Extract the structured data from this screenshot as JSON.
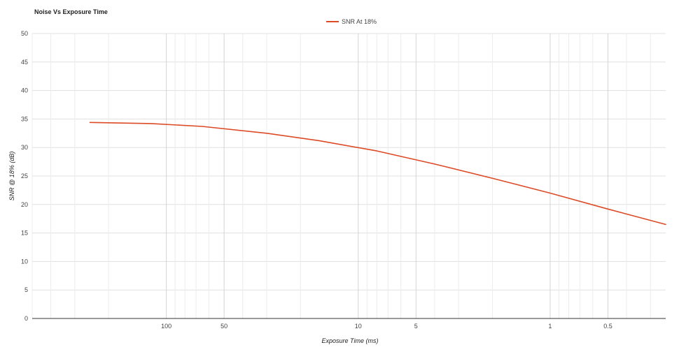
{
  "chart_data": {
    "type": "line",
    "title": "Noise Vs Exposure Time",
    "xlabel": "Exposure Time (ms)",
    "ylabel": "SNR @ 18% (dB)",
    "x_scale": "log",
    "x_reversed": true,
    "xlim": [
      500,
      0.25
    ],
    "ylim": [
      0,
      50
    ],
    "y_ticks": [
      0,
      5,
      10,
      15,
      20,
      25,
      30,
      35,
      40,
      45,
      50
    ],
    "x_ticks": [
      100,
      50,
      10,
      5,
      1,
      0.5
    ],
    "x_tick_labels": [
      "100",
      "50",
      "10",
      "5",
      "1",
      "0.5"
    ],
    "grid": true,
    "legend_position": "top-center",
    "series": [
      {
        "name": "SNR At 18%",
        "color": "#dc4a26",
        "points": [
          {
            "x": 250,
            "y": 34.4
          },
          {
            "x": 120,
            "y": 34.2
          },
          {
            "x": 65,
            "y": 33.7
          },
          {
            "x": 30,
            "y": 32.5
          },
          {
            "x": 16,
            "y": 31.2
          },
          {
            "x": 8,
            "y": 29.4
          },
          {
            "x": 4,
            "y": 27.1
          },
          {
            "x": 2,
            "y": 24.6
          },
          {
            "x": 1,
            "y": 22.0
          },
          {
            "x": 0.5,
            "y": 19.2
          },
          {
            "x": 0.25,
            "y": 16.5
          }
        ]
      }
    ]
  }
}
